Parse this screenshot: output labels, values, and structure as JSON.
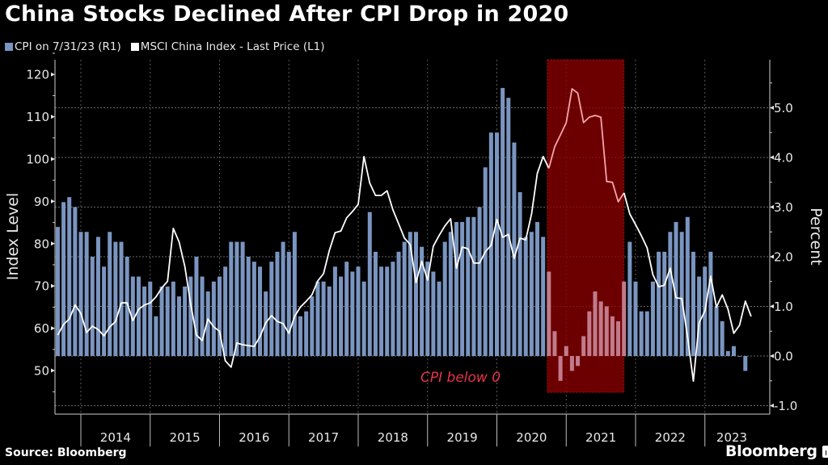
{
  "header": {
    "title": "China Stocks Declined After CPI Drop in 2020"
  },
  "legend": [
    {
      "label": "CPI on 7/31/23 (R1)",
      "color": "#7a95c0"
    },
    {
      "label": "MSCI China Index - Last Price (L1)",
      "color": "#ffffff"
    }
  ],
  "footer": {
    "source": "Source: Bloomberg",
    "brand": "Bloomberg"
  },
  "chart_data": {
    "type": "bar+line",
    "title": "China Stocks Declined After CPI Drop in 2020",
    "xlabel": "",
    "ylabel_left": "Index Level",
    "ylabel_right": "Percent",
    "ylim_left": [
      41,
      124
    ],
    "ylim_right": [
      -1.1,
      5.85
    ],
    "left_ticks": [
      50,
      60,
      70,
      80,
      90,
      100,
      110,
      120
    ],
    "right_ticks": [
      "-1.0",
      "0.0",
      "1.0",
      "2.0",
      "3.0",
      "4.0",
      "5.0"
    ],
    "year_labels": [
      "2014",
      "2015",
      "2016",
      "2017",
      "2018",
      "2019",
      "2020",
      "2021",
      "2022",
      "2023"
    ],
    "start_month": "2013-08",
    "end_month": "2023-07",
    "grid": true,
    "legend_position": "top-left",
    "annotation": {
      "text": "CPI below 0",
      "shaded_from": "2020-09",
      "shaded_to": "2021-10",
      "color": "#8b0000"
    },
    "series": [
      {
        "name": "CPI on 7/31/23 (R1)",
        "type": "bar",
        "axis": "right",
        "color": "#7a95c0",
        "values": [
          2.6,
          3.1,
          3.2,
          3.0,
          2.5,
          2.5,
          2.0,
          2.4,
          1.8,
          2.5,
          2.3,
          2.3,
          2.0,
          1.6,
          1.6,
          1.4,
          1.5,
          0.8,
          1.4,
          1.4,
          1.5,
          1.2,
          1.4,
          1.6,
          2.0,
          1.6,
          1.3,
          1.5,
          1.6,
          1.8,
          2.3,
          2.3,
          2.3,
          2.0,
          1.9,
          1.8,
          1.3,
          1.9,
          2.1,
          2.3,
          2.1,
          2.5,
          0.8,
          0.9,
          1.2,
          1.5,
          1.5,
          1.4,
          1.8,
          1.6,
          1.9,
          1.7,
          1.8,
          1.5,
          2.9,
          2.1,
          1.8,
          1.8,
          1.9,
          2.1,
          2.3,
          2.5,
          2.5,
          2.2,
          1.9,
          1.7,
          1.5,
          2.3,
          2.5,
          2.7,
          2.7,
          2.8,
          2.8,
          3.0,
          3.8,
          4.5,
          4.5,
          5.4,
          5.2,
          4.3,
          3.3,
          2.4,
          2.5,
          2.7,
          2.4,
          1.7,
          0.5,
          -0.5,
          0.2,
          -0.3,
          -0.2,
          0.4,
          0.9,
          1.3,
          1.1,
          1.0,
          0.8,
          0.7,
          1.5,
          2.3,
          1.5,
          0.9,
          0.9,
          1.5,
          2.1,
          2.1,
          2.5,
          2.7,
          2.5,
          2.8,
          2.1,
          1.6,
          1.8,
          2.1,
          1.0,
          0.7,
          0.1,
          0.2,
          0.0,
          -0.3
        ]
      },
      {
        "name": "MSCI China Index - Last Price (L1)",
        "type": "line",
        "axis": "left",
        "color": "#ffffff",
        "values": [
          58.4,
          60.9,
          62.2,
          65.5,
          63.5,
          59.0,
          60.5,
          59.7,
          58.2,
          60.3,
          61.6,
          66.0,
          66.0,
          61.8,
          64.5,
          65.5,
          66.0,
          67.4,
          69.5,
          71.1,
          83.6,
          80.4,
          74.6,
          65.7,
          58.4,
          57.1,
          62.2,
          60.3,
          59.3,
          52.3,
          50.8,
          56.5,
          56.1,
          55.9,
          55.7,
          58.0,
          61.3,
          63.0,
          61.6,
          61.1,
          58.8,
          62.8,
          65.0,
          66.4,
          67.9,
          71.2,
          72.9,
          78.4,
          82.6,
          83.0,
          86.1,
          87.6,
          89.3,
          100.6,
          94.3,
          91.4,
          91.4,
          92.5,
          88.0,
          84.7,
          81.3,
          79.8,
          70.8,
          75.8,
          71.4,
          79.4,
          81.9,
          84.2,
          85.9,
          74.2,
          79.2,
          78.8,
          75.4,
          75.4,
          78.1,
          79.6,
          85.7,
          81.5,
          82.2,
          76.5,
          81.3,
          80.9,
          87.0,
          96.6,
          100.6,
          97.8,
          102.9,
          105.7,
          108.6,
          116.6,
          115.6,
          108.6,
          109.9,
          110.3,
          109.9,
          94.7,
          94.5,
          89.9,
          92.0,
          87.0,
          84.5,
          81.9,
          79.0,
          72.7,
          69.8,
          70.2,
          74.2,
          67.2,
          67.0,
          58.0,
          47.5,
          61.3,
          64.1,
          72.3,
          65.0,
          67.9,
          64.5,
          58.8,
          60.7,
          66.4,
          62.8
        ]
      }
    ]
  }
}
